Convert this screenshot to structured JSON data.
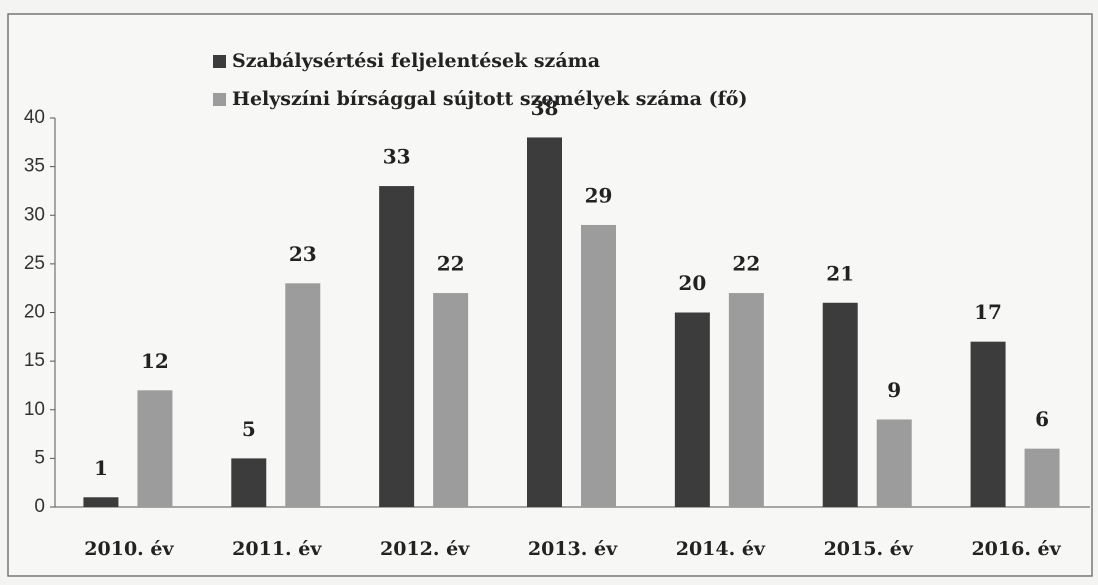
{
  "chart_data": {
    "type": "bar",
    "categories": [
      "2010. év",
      "2011. év",
      "2012. év",
      "2013. év",
      "2014. év",
      "2015. év",
      "2016. év"
    ],
    "series": [
      {
        "name": "Szabálysértési feljelentések száma",
        "color": "#3c3c3c",
        "values": [
          1,
          5,
          33,
          38,
          20,
          21,
          17
        ]
      },
      {
        "name": "Helyszíni bírsággal sújtott személyek száma (fő)",
        "color": "#9c9c9c",
        "values": [
          12,
          23,
          22,
          29,
          22,
          9,
          6
        ]
      }
    ],
    "ylim": [
      0,
      40
    ],
    "yticks": [
      0,
      5,
      10,
      15,
      20,
      25,
      30,
      35,
      40
    ],
    "legend": "top-left"
  }
}
